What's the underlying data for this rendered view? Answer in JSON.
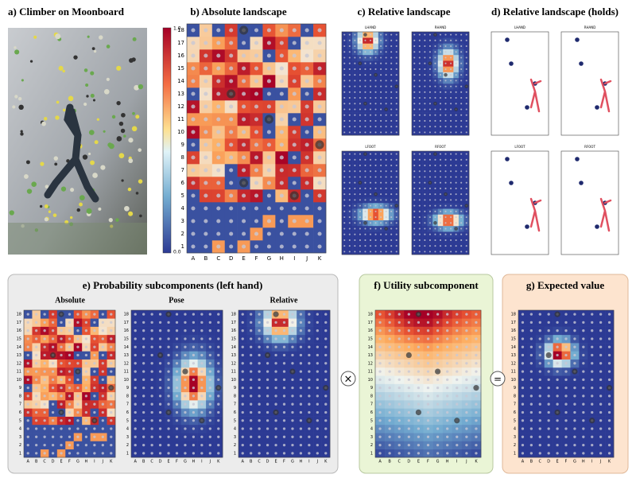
{
  "panels": {
    "a": {
      "title": "a) Climber on Moonboard"
    },
    "b": {
      "title": "b) Absolute landscape",
      "colorbar_ticks": [
        "1.0",
        "0.0"
      ]
    },
    "c": {
      "title": "c) Relative landscape",
      "maps": [
        "LHAND",
        "RHAND",
        "LFOOT",
        "RFOOT"
      ]
    },
    "d": {
      "title": "d) Relative landscape (holds)",
      "maps": [
        "LHAND",
        "RHAND",
        "LFOOT",
        "RFOOT"
      ]
    },
    "e": {
      "title": "e) Probability subcomponents (left hand)",
      "subtitles": [
        "Absolute",
        "Pose",
        "Relative"
      ]
    },
    "f": {
      "title": "f) Utility subcomponent"
    },
    "g": {
      "title": "g) Expected value"
    }
  },
  "operators": [
    "×",
    "="
  ],
  "columns": [
    "A",
    "B",
    "C",
    "D",
    "E",
    "F",
    "G",
    "H",
    "I",
    "J",
    "K"
  ],
  "rows": [
    "1",
    "2",
    "3",
    "4",
    "5",
    "6",
    "7",
    "8",
    "9",
    "10",
    "11",
    "12",
    "13",
    "14",
    "15",
    "16",
    "17",
    "18"
  ]
}
